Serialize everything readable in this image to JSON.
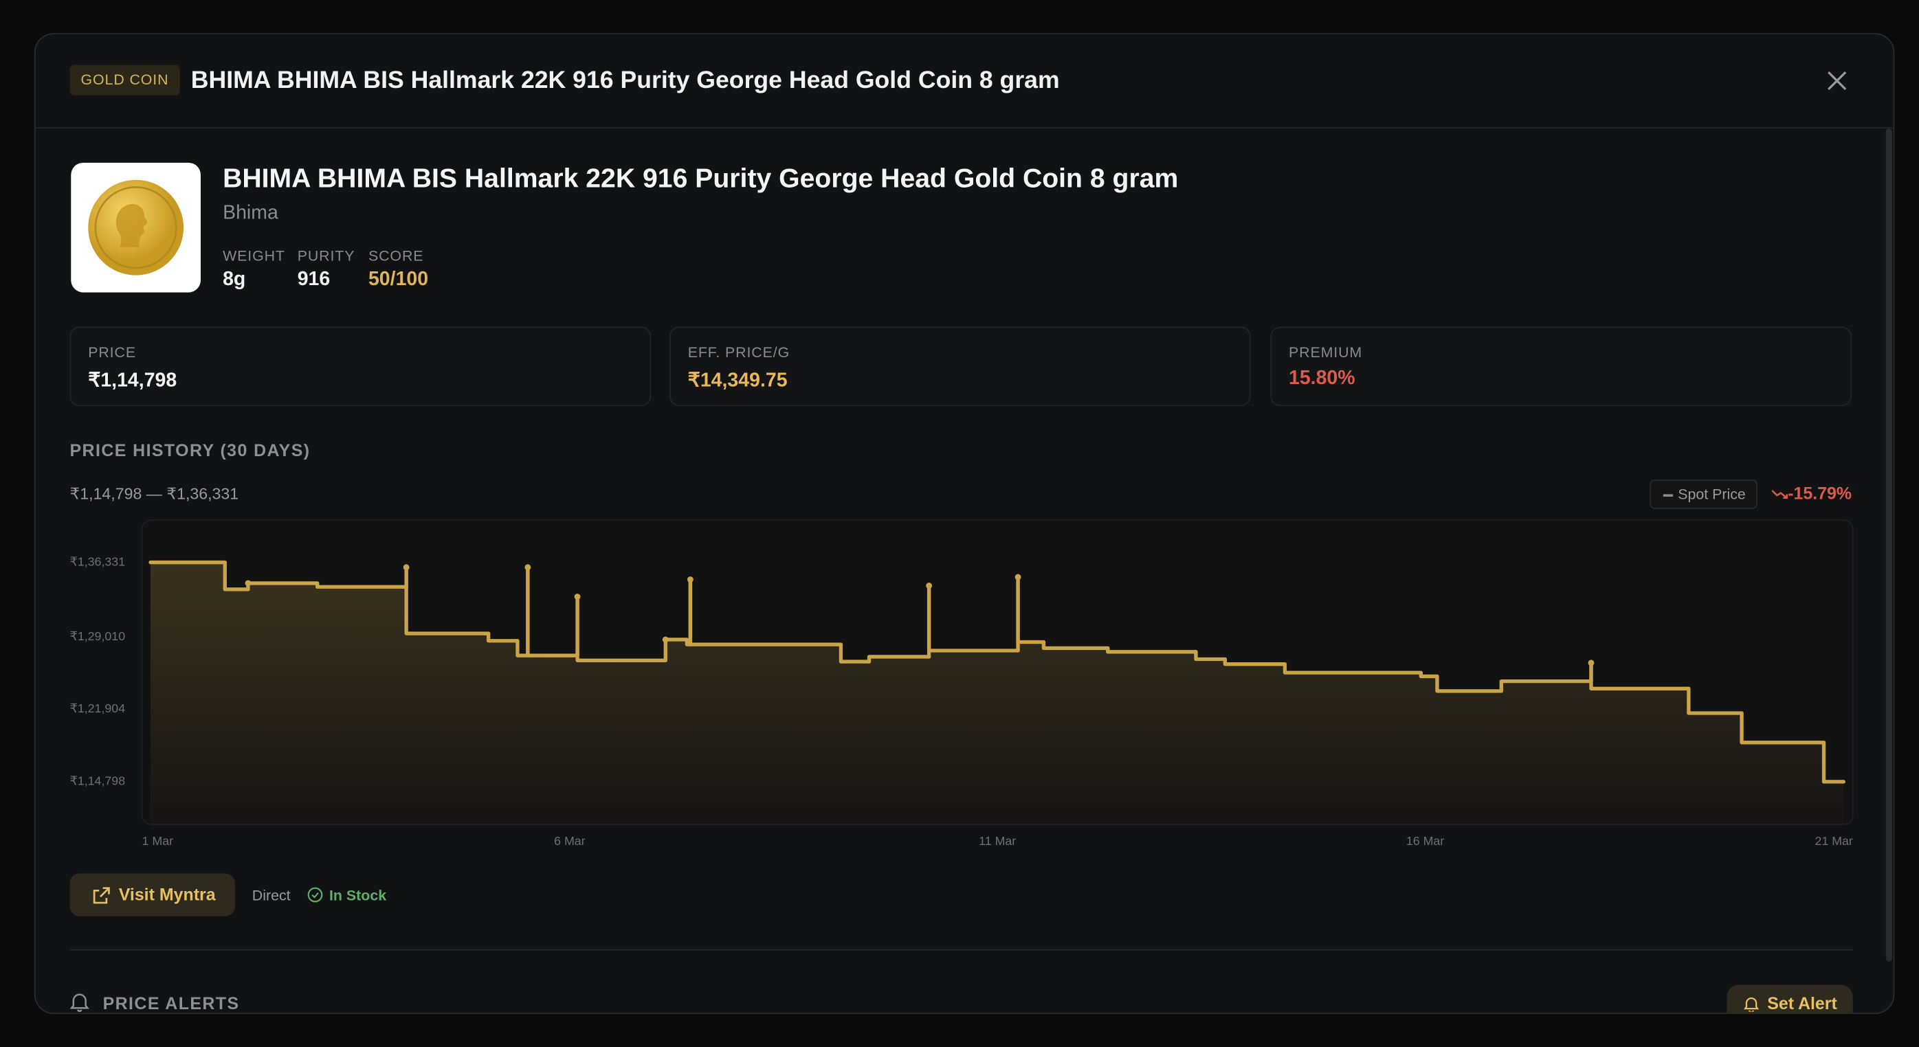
{
  "header": {
    "badge": "GOLD COIN",
    "title": "BHIMA BHIMA BIS Hallmark 22K 916 Purity George Head Gold Coin 8 gram"
  },
  "product": {
    "title": "BHIMA BHIMA BIS Hallmark 22K 916 Purity George Head Gold Coin 8 gram",
    "brand": "Bhima",
    "specs": [
      {
        "label": "WEIGHT",
        "value": "8g"
      },
      {
        "label": "PURITY",
        "value": "916"
      },
      {
        "label": "SCORE",
        "value": "50/100"
      }
    ]
  },
  "stats": [
    {
      "label": "PRICE",
      "value": "₹1,14,798"
    },
    {
      "label": "EFF. PRICE/G",
      "value": "₹14,349.75"
    },
    {
      "label": "PREMIUM",
      "value": "15.80%"
    }
  ],
  "history": {
    "heading": "PRICE HISTORY (30 DAYS)",
    "range": "₹1,14,798 — ₹1,36,331",
    "legend": "Spot Price",
    "change": "-15.79%"
  },
  "chart_data": {
    "type": "line",
    "interpolation": "step-after",
    "color": "#c9a449",
    "x": [
      1.1,
      1.97,
      2.24,
      3.05,
      4.09,
      4.09,
      5.05,
      5.39,
      5.51,
      5.51,
      6.09,
      6.09,
      7.12,
      7.37,
      7.41,
      7.41,
      9.17,
      9.5,
      10.2,
      10.2,
      11.24,
      11.24,
      11.54,
      12.29,
      13.32,
      13.66,
      14.36,
      15.95,
      16.14,
      16.89,
      17.94,
      17.94,
      19.08,
      19.7,
      20.66,
      20.89
    ],
    "values": [
      136331,
      133684,
      134286,
      133925,
      135850,
      129354,
      128632,
      127188,
      135850,
      127188,
      132963,
      126707,
      128752,
      128271,
      134647,
      128271,
      126587,
      127068,
      134045,
      127670,
      134887,
      128511,
      127910,
      127549,
      126827,
      126346,
      125504,
      125143,
      123700,
      124662,
      126467,
      123940,
      121534,
      118647,
      114798,
      114798
    ],
    "xlim": [
      1,
      21
    ],
    "xticks": [
      {
        "value": 1,
        "label": "1 Mar"
      },
      {
        "value": 6,
        "label": "6 Mar"
      },
      {
        "value": 11,
        "label": "11 Mar"
      },
      {
        "value": 16,
        "label": "16 Mar"
      },
      {
        "value": 21,
        "label": "21 Mar"
      }
    ],
    "ylim": [
      110600,
      140500
    ],
    "yticks": [
      {
        "value": 114798,
        "label": "₹1,14,798"
      },
      {
        "value": 121904,
        "label": "₹1,21,904"
      },
      {
        "value": 129010,
        "label": "₹1,29,010"
      },
      {
        "value": 136331,
        "label": "₹1,36,331"
      }
    ],
    "grid": false
  },
  "actions": {
    "visit": "Visit Myntra",
    "channel": "Direct",
    "stock": "In Stock"
  },
  "alerts": {
    "heading": "PRICE ALERTS",
    "button": "Set Alert"
  }
}
